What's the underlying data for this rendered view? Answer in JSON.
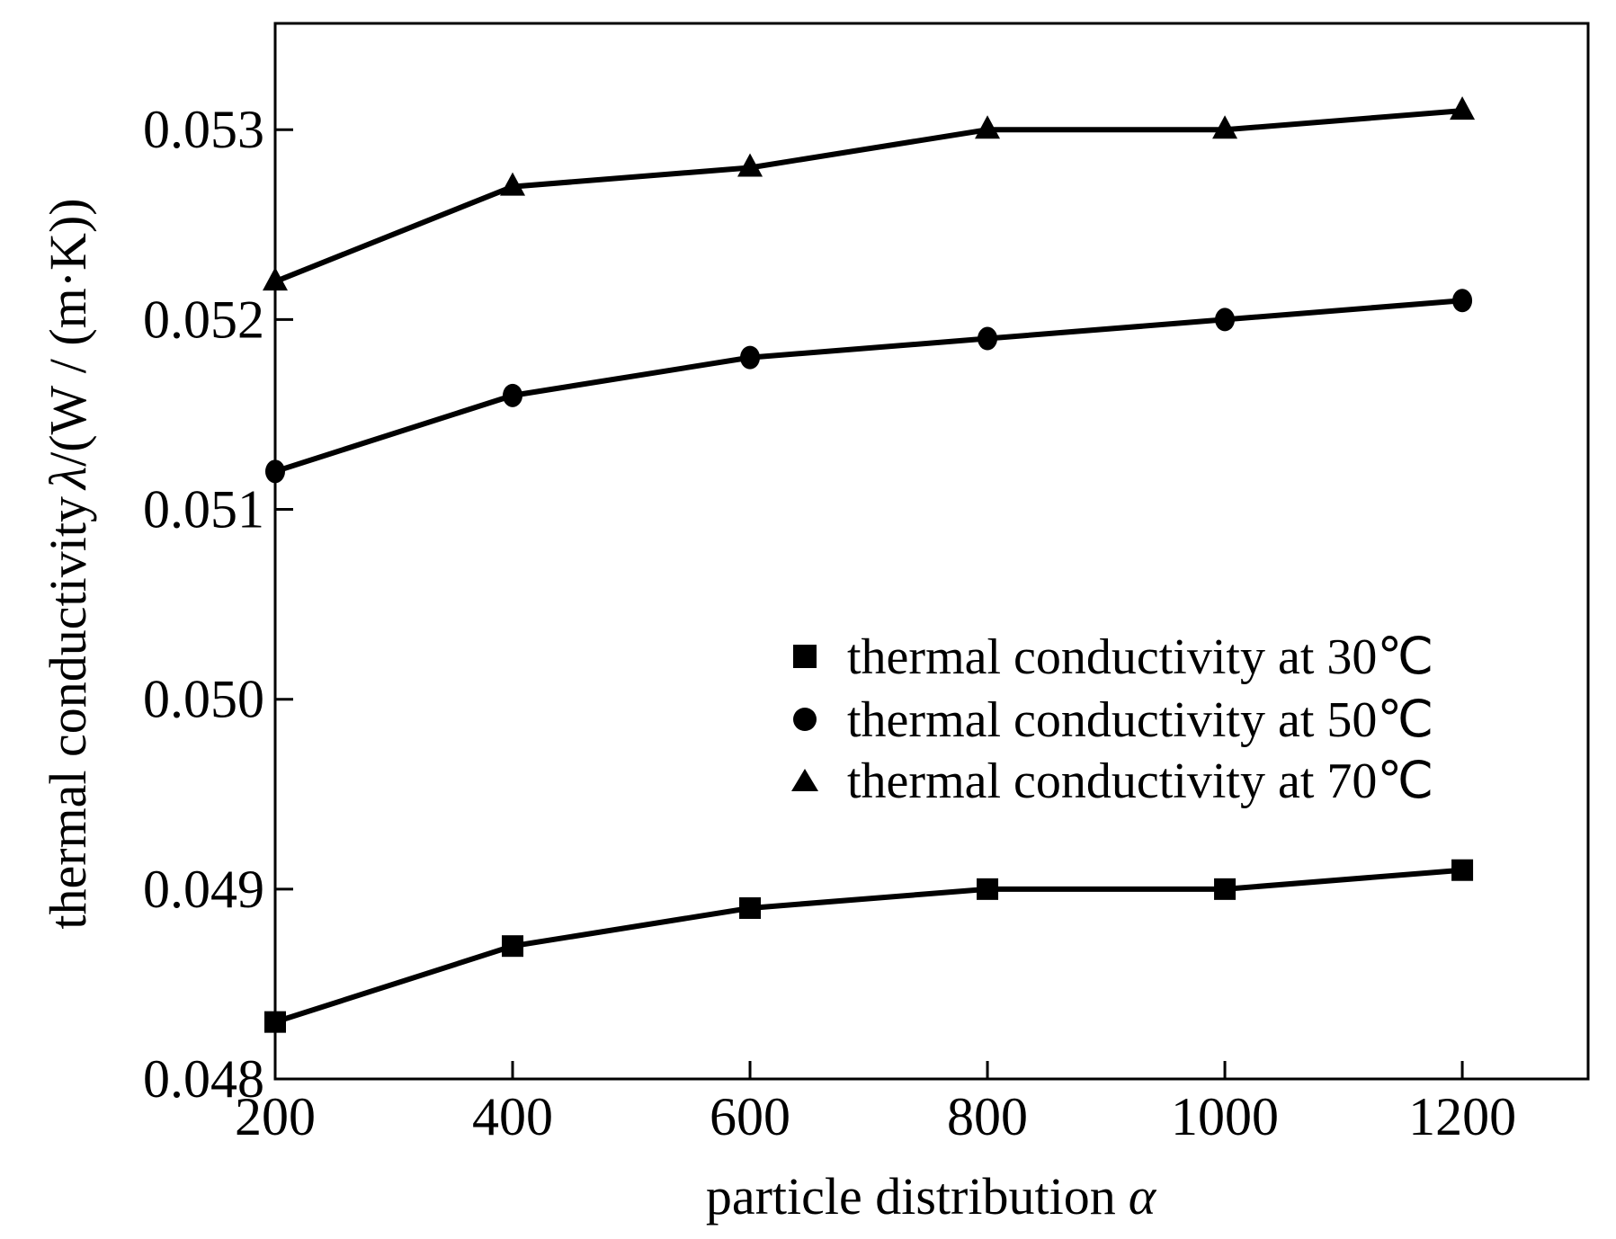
{
  "chart_data": {
    "type": "line",
    "title": "",
    "xlabel": "particle distribution",
    "xlabel_symbol": "α",
    "ylabel": "thermal conductivity",
    "ylabel_symbol": "λ",
    "ylabel_units": "/(W / (m·K))",
    "x": [
      200,
      400,
      600,
      800,
      1000,
      1200
    ],
    "xlim": [
      200,
      1306
    ],
    "ylim": [
      0.048,
      0.05356
    ],
    "xticks": [
      200,
      400,
      600,
      800,
      1000,
      1200
    ],
    "xtick_labels": [
      "200",
      "400",
      "600",
      "800",
      "1000",
      "1200"
    ],
    "yticks": [
      0.048,
      0.049,
      0.05,
      0.051,
      0.052,
      0.053
    ],
    "ytick_labels": [
      "0.048",
      "0.049",
      "0.050",
      "0.051",
      "0.052",
      "0.053"
    ],
    "grid": false,
    "legend_position": "center-right",
    "series": [
      {
        "name": "thermal conductivity at 30℃",
        "marker": "square",
        "color": "#000000",
        "values": [
          0.0483,
          0.0487,
          0.0489,
          0.049,
          0.049,
          0.0491
        ]
      },
      {
        "name": "thermal conductivity at 50℃",
        "marker": "circle",
        "color": "#000000",
        "values": [
          0.0512,
          0.0516,
          0.0518,
          0.0519,
          0.052,
          0.0521
        ]
      },
      {
        "name": "thermal conductivity at 70℃",
        "marker": "triangle",
        "color": "#000000",
        "values": [
          0.0522,
          0.0527,
          0.0528,
          0.053,
          0.053,
          0.0531
        ]
      }
    ]
  }
}
